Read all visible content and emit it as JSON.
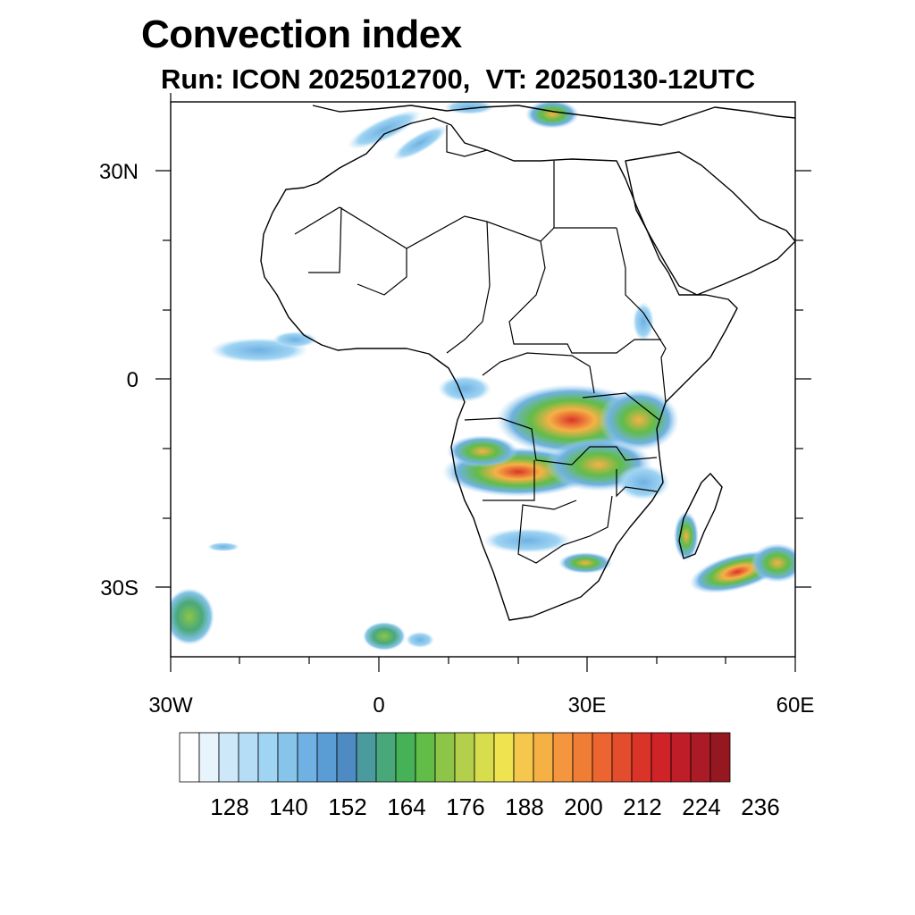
{
  "header": {
    "title": "Convection index",
    "subtitle": "Run: ICON 2025012700,  VT: 20250130-12UTC"
  },
  "axes": {
    "lat_labels": [
      "30N",
      "0",
      "30S"
    ],
    "lon_labels": [
      "30W",
      "0",
      "30E",
      "60E"
    ],
    "lat_range": [
      -40,
      40
    ],
    "lon_range": [
      -30,
      60
    ]
  },
  "colorbar": {
    "colors": [
      "#ffffff",
      "#e8f4fc",
      "#cde8f8",
      "#b5ddf5",
      "#9fd4f3",
      "#86c4ea",
      "#6fb1e2",
      "#5a9dd5",
      "#4d8bc2",
      "#4a9a9e",
      "#49a87a",
      "#45b257",
      "#61bc48",
      "#8dc548",
      "#b3cf4b",
      "#d8dd4e",
      "#f0e350",
      "#f5c84d",
      "#f6b145",
      "#f4963e",
      "#f07d36",
      "#ec6530",
      "#e34c2c",
      "#da3428",
      "#cf2328",
      "#bf1e28",
      "#aa1b25",
      "#951820"
    ],
    "tick_labels": [
      "128",
      "140",
      "152",
      "164",
      "176",
      "188",
      "200",
      "212",
      "224",
      "236"
    ]
  }
}
